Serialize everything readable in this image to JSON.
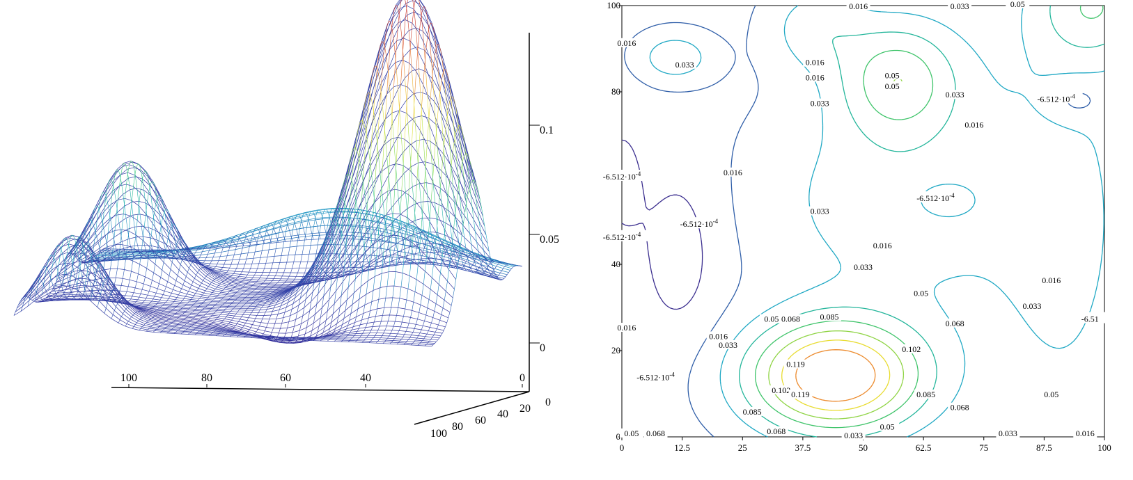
{
  "chart_data": [
    {
      "type": "surface",
      "title": "",
      "description": "3D wireframe surface plot",
      "axes": {
        "z": {
          "ticks": [
            "0.1",
            "0.05",
            "0"
          ]
        },
        "x": {
          "ticks": [
            "100",
            "80",
            "60",
            "40",
            "0"
          ]
        },
        "y": {
          "ticks": [
            "100",
            "80",
            "60",
            "40",
            "20",
            "0"
          ]
        }
      },
      "colormap": [
        "#3a1a8c",
        "#2f4fb0",
        "#1fa6c8",
        "#39c98a",
        "#9ae04a",
        "#f0e43a",
        "#e6742f",
        "#c9312a"
      ],
      "peaks": [
        {
          "x": 45,
          "y": 15,
          "z": 0.125
        },
        {
          "x": 10,
          "y": 90,
          "z": 0.04
        },
        {
          "x": 60,
          "y": 85,
          "z": 0.055
        }
      ]
    },
    {
      "type": "contour",
      "title": "",
      "xlabel": "",
      "ylabel": "",
      "xlim": [
        0,
        100
      ],
      "ylim": [
        0,
        100
      ],
      "x_ticks": [
        "0",
        "12.5",
        "25",
        "37.5",
        "50",
        "62.5",
        "75",
        "87.5",
        "100"
      ],
      "y_ticks": [
        "0",
        "20",
        "40",
        "60",
        "80",
        "100"
      ],
      "levels": [
        -0.0006512,
        0.016,
        0.033,
        0.05,
        0.068,
        0.085,
        0.102,
        0.119
      ],
      "level_colors": {
        "-6.512e-4": "#3b2e8f",
        "0.016": "#2f5ea8",
        "0.033": "#1fa8c4",
        "0.05": "#22b59a",
        "0.068": "#3fc46a",
        "0.085": "#8fd444",
        "0.102": "#e8dc30",
        "0.119": "#ec8a2c"
      },
      "labels": [
        {
          "text": "0.016",
          "x": 40,
          "y": 83
        },
        {
          "text": "0.016",
          "x": 40,
          "y": 86.5
        },
        {
          "text": "0.033",
          "x": 13,
          "y": 86
        },
        {
          "text": "0.016",
          "x": 1,
          "y": 91
        },
        {
          "text": "0.05",
          "x": 56,
          "y": 83.5
        },
        {
          "text": "0.05",
          "x": 56,
          "y": 81
        },
        {
          "text": "0.033",
          "x": 41,
          "y": 77
        },
        {
          "text": "0.033",
          "x": 69,
          "y": 79
        },
        {
          "text": "0.016",
          "x": 73,
          "y": 72
        },
        {
          "text": "0.016",
          "x": 23,
          "y": 61
        },
        {
          "text": "0.033",
          "x": 41,
          "y": 52
        },
        {
          "text": "0.016",
          "x": 54,
          "y": 44
        },
        {
          "text": "0.016",
          "x": 89,
          "y": 36
        },
        {
          "text": "0.033",
          "x": 50,
          "y": 39
        },
        {
          "text": "0.05",
          "x": 62,
          "y": 33
        },
        {
          "text": "0.033",
          "x": 85,
          "y": 30
        },
        {
          "text": "0.05",
          "x": 31,
          "y": 27
        },
        {
          "text": "0.068",
          "x": 35,
          "y": 27
        },
        {
          "text": "0.085",
          "x": 43,
          "y": 27.5
        },
        {
          "text": "0.068",
          "x": 69,
          "y": 26
        },
        {
          "text": "0.016",
          "x": 20,
          "y": 23
        },
        {
          "text": "0.033",
          "x": 22,
          "y": 21
        },
        {
          "text": "0.102",
          "x": 60,
          "y": 20
        },
        {
          "text": "0.119",
          "x": 36,
          "y": 16.5
        },
        {
          "text": "0.102",
          "x": 33,
          "y": 10.5
        },
        {
          "text": "0.119",
          "x": 37,
          "y": 9.5
        },
        {
          "text": "0.085",
          "x": 27,
          "y": 5.5
        },
        {
          "text": "0.085",
          "x": 63,
          "y": 9.5
        },
        {
          "text": "0.068",
          "x": 70,
          "y": 6.5
        },
        {
          "text": "0.05",
          "x": 89,
          "y": 9.5
        },
        {
          "text": "0.05",
          "x": 55,
          "y": 2
        },
        {
          "text": "0.068",
          "x": 32,
          "y": 1
        },
        {
          "text": "0.033",
          "x": 80,
          "y": 0.5
        },
        {
          "text": "0.016",
          "x": 96,
          "y": 0.5
        },
        {
          "text": "0.05",
          "x": 2,
          "y": 0.5
        },
        {
          "text": "0.068",
          "x": 7,
          "y": 0.5
        },
        {
          "text": "0.033",
          "x": 48,
          "y": 0
        },
        {
          "text": "0.016",
          "x": 49,
          "y": 99.5
        },
        {
          "text": "0.033",
          "x": 70,
          "y": 99.5
        },
        {
          "text": "0.05",
          "x": 82,
          "y": 100
        },
        {
          "text": "0.016",
          "x": 1,
          "y": 25
        }
      ],
      "exp_labels": [
        {
          "mantissa": "-6.512·10",
          "exp": "-4",
          "x": 90,
          "y": 78
        },
        {
          "mantissa": "-6.512·10",
          "exp": "-4",
          "x": 65,
          "y": 55
        },
        {
          "mantissa": "-6.512·10",
          "exp": "-4",
          "x": 16,
          "y": 49
        },
        {
          "mantissa": "-6.512·10",
          "exp": "-4",
          "x": 7,
          "y": 13.5
        },
        {
          "mantissa": "-6.512·10",
          "exp": "-4",
          "x": 0,
          "y": 60
        },
        {
          "mantissa": "-6.512·10",
          "exp": "-4",
          "x": 0,
          "y": 46
        },
        {
          "mantissa": "-6.51",
          "exp": "",
          "x": 97,
          "y": 27
        }
      ]
    }
  ]
}
